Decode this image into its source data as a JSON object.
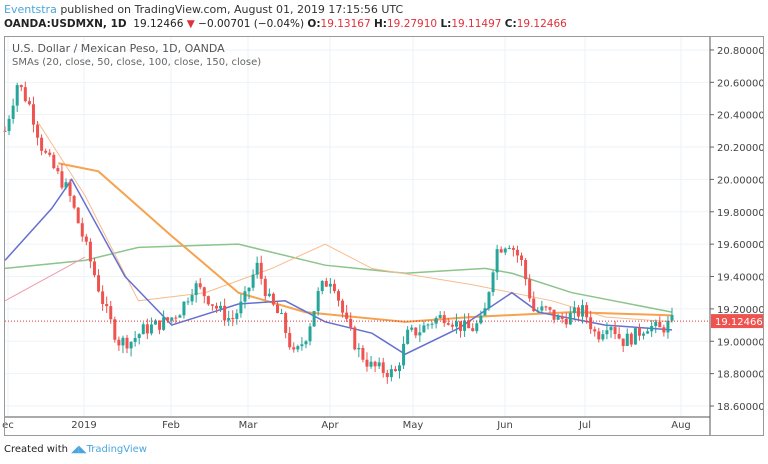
{
  "header": {
    "author": "Eventstra",
    "published": "published on TradingView.com, August 01, 2019 17:15:56 UTC"
  },
  "quote": {
    "symbol": "OANDA:USDMXN, 1D",
    "last": "19.12466",
    "change": "−0.00701 (−0.04%)",
    "o_label": "O:",
    "open": "19.13167",
    "h_label": "H:",
    "high": "19.27910",
    "l_label": "L:",
    "low": "19.11497",
    "c_label": "C:",
    "close": "19.12466"
  },
  "chart_title": "U.S. Dollar / Mexican Peso, 1D, OANDA",
  "indicators": "SMAs (20, close, 50, close, 100, close, 150, close)",
  "footer": {
    "created": "Created with",
    "brand": "TradingView"
  },
  "colors": {
    "up": "#26a69a",
    "down": "#ef5350",
    "sma20": "#6470d0",
    "sma50": "#f6a24e",
    "sma100": "#f9bb8c",
    "sma150": "#8cc48c",
    "sma150b": "#ef9aa8"
  },
  "chart_data": {
    "type": "candlestick",
    "ylim": [
      18.532,
      20.88
    ],
    "y_ticks": [
      "20.80000",
      "20.60000",
      "20.40000",
      "20.20000",
      "20.00000",
      "19.80000",
      "19.60000",
      "19.40000",
      "19.20000",
      "19.00000",
      "18.80000",
      "18.60000"
    ],
    "x_ticks": [
      "ec",
      "2019",
      "Feb",
      "Mar",
      "Apr",
      "May",
      "Jun",
      "Jul",
      "Aug"
    ],
    "last_price": "19.12466",
    "close_path": [
      20.3,
      20.6,
      20.45,
      20.18,
      20.05,
      19.93,
      19.69,
      19.44,
      19.19,
      19.0,
      19.0,
      19.07,
      19.1,
      19.13,
      19.2,
      19.35,
      19.28,
      19.19,
      19.13,
      19.25,
      19.47,
      19.25,
      19.13,
      18.9,
      19.05,
      19.32,
      19.4,
      19.13,
      18.95,
      18.85,
      18.82,
      18.8,
      19.04,
      19.07,
      19.13,
      19.16,
      19.1,
      19.07,
      19.13,
      19.56,
      19.62,
      19.5,
      19.19,
      19.19,
      19.13,
      19.16,
      19.19,
      19.03,
      19.13,
      19.0,
      19.03,
      19.1,
      19.07,
      19.12
    ],
    "sma20": [
      [
        0,
        19.5
      ],
      [
        0.07,
        19.82
      ],
      [
        0.1,
        20.0
      ],
      [
        0.18,
        19.4
      ],
      [
        0.25,
        19.1
      ],
      [
        0.35,
        19.23
      ],
      [
        0.42,
        19.25
      ],
      [
        0.48,
        19.12
      ],
      [
        0.55,
        19.05
      ],
      [
        0.6,
        18.92
      ],
      [
        0.68,
        19.08
      ],
      [
        0.76,
        19.3
      ],
      [
        0.8,
        19.18
      ],
      [
        0.9,
        19.1
      ],
      [
        1,
        19.07
      ]
    ],
    "sma50": [
      [
        0.08,
        20.1
      ],
      [
        0.14,
        20.05
      ],
      [
        0.25,
        19.65
      ],
      [
        0.35,
        19.3
      ],
      [
        0.45,
        19.18
      ],
      [
        0.6,
        19.12
      ],
      [
        0.7,
        19.15
      ],
      [
        0.85,
        19.18
      ],
      [
        1,
        19.16
      ]
    ],
    "sma100": [
      [
        0.05,
        20.35
      ],
      [
        0.12,
        19.9
      ],
      [
        0.2,
        19.25
      ],
      [
        0.3,
        19.3
      ],
      [
        0.4,
        19.45
      ],
      [
        0.48,
        19.6
      ],
      [
        0.55,
        19.45
      ],
      [
        0.7,
        19.35
      ],
      [
        0.82,
        19.25
      ],
      [
        0.9,
        19.15
      ],
      [
        1,
        19.12
      ]
    ],
    "sma150": [
      [
        0,
        19.45
      ],
      [
        0.12,
        19.5
      ],
      [
        0.2,
        19.58
      ],
      [
        0.35,
        19.6
      ],
      [
        0.48,
        19.47
      ],
      [
        0.6,
        19.42
      ],
      [
        0.72,
        19.45
      ],
      [
        0.76,
        19.42
      ],
      [
        0.85,
        19.3
      ],
      [
        1,
        19.18
      ]
    ],
    "sma150_early": [
      [
        0,
        19.25
      ],
      [
        0.12,
        19.52
      ]
    ]
  }
}
